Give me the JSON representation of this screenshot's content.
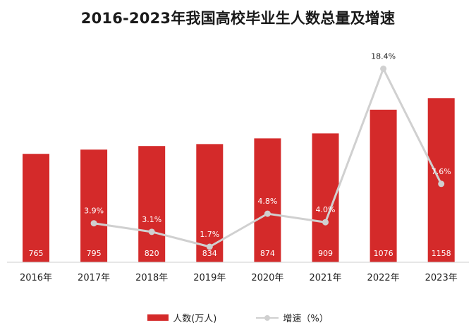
{
  "chart_data": {
    "type": "bar",
    "title": "2016-2023年我国高校毕业生人数总量及增速",
    "categories": [
      "2016年",
      "2017年",
      "2018年",
      "2019年",
      "2020年",
      "2021年",
      "2022年",
      "2023年"
    ],
    "series": [
      {
        "name": "人数(万人)",
        "type": "bar",
        "values": [
          765,
          795,
          820,
          834,
          874,
          909,
          1076,
          1158
        ],
        "labels": [
          "765",
          "795",
          "820",
          "834",
          "874",
          "909",
          "1076",
          "1158"
        ],
        "color": "#d42a2a"
      },
      {
        "name": "增速（%）",
        "type": "line",
        "values": [
          null,
          3.9,
          3.1,
          1.7,
          4.8,
          4.0,
          18.4,
          7.6
        ],
        "labels": [
          "",
          "3.9%",
          "3.1%",
          "1.7%",
          "4.8%",
          "4.0%",
          "18.4%",
          "7.6%"
        ],
        "color": "#d0d0d0"
      }
    ],
    "grid": false,
    "legend_position": "bottom"
  }
}
